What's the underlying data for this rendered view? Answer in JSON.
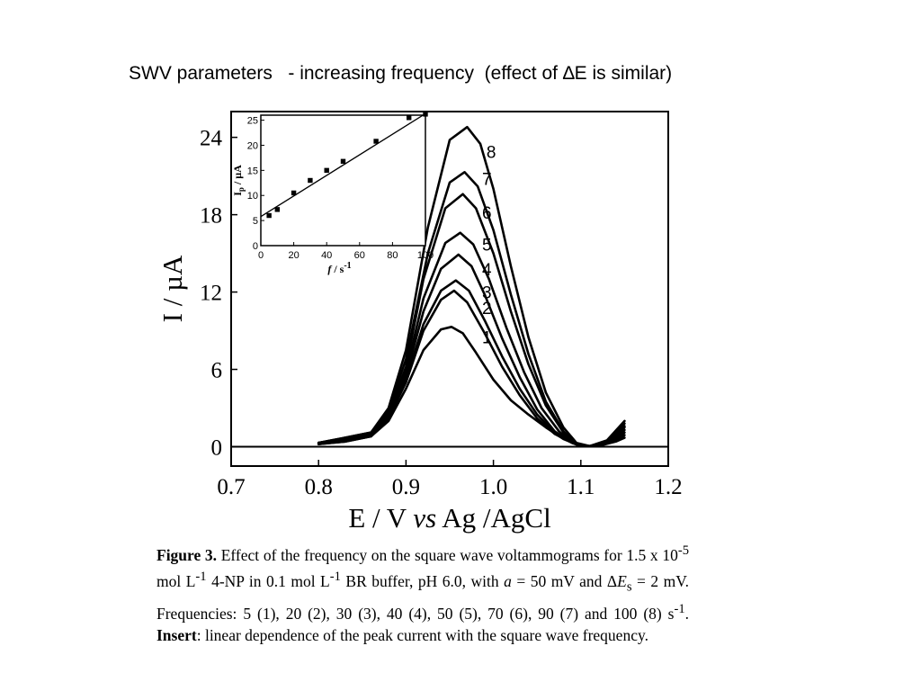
{
  "slide": {
    "title": "SWV parameters   - increasing frequency  (effect of ∆E is similar)"
  },
  "chart_data": [
    {
      "type": "line",
      "xlabel": "E / V vs Ag /AgCl",
      "xlabel_parts": [
        "E / V ",
        "vs",
        " Ag /AgCl"
      ],
      "ylabel": "I / µA",
      "xlim": [
        0.7,
        1.2
      ],
      "ylim": [
        -1.5,
        26
      ],
      "xticks": [
        0.7,
        0.8,
        0.9,
        1.0,
        1.1,
        1.2
      ],
      "xtick_labels": [
        "0.7",
        "0.8",
        "0.9",
        "1.0",
        "1.1",
        "1.2"
      ],
      "yticks": [
        0,
        6,
        12,
        18,
        24
      ],
      "ytick_labels": [
        "0",
        "6",
        "12",
        "18",
        "24"
      ],
      "baseline": 0,
      "series": [
        {
          "name": "1",
          "points": [
            [
              0.8,
              0.2
            ],
            [
              0.83,
              0.4
            ],
            [
              0.86,
              0.8
            ],
            [
              0.88,
              2
            ],
            [
              0.9,
              4.5
            ],
            [
              0.92,
              7.5
            ],
            [
              0.94,
              9.1
            ],
            [
              0.952,
              9.3
            ],
            [
              0.965,
              8.8
            ],
            [
              0.98,
              7.3
            ],
            [
              1.0,
              5.2
            ],
            [
              1.02,
              3.6
            ],
            [
              1.04,
              2.5
            ],
            [
              1.06,
              1.5
            ],
            [
              1.08,
              0.6
            ],
            [
              1.1,
              0.05
            ],
            [
              1.12,
              0.05
            ],
            [
              1.14,
              0.4
            ],
            [
              1.15,
              0.7
            ]
          ]
        },
        {
          "name": "2",
          "points": [
            [
              0.8,
              0.2
            ],
            [
              0.83,
              0.4
            ],
            [
              0.86,
              0.8
            ],
            [
              0.88,
              2.2
            ],
            [
              0.9,
              5
            ],
            [
              0.92,
              9
            ],
            [
              0.94,
              11.4
            ],
            [
              0.955,
              12.1
            ],
            [
              0.97,
              11.2
            ],
            [
              0.99,
              8.8
            ],
            [
              1.01,
              6.2
            ],
            [
              1.03,
              4
            ],
            [
              1.05,
              2.2
            ],
            [
              1.07,
              1
            ],
            [
              1.09,
              0.3
            ],
            [
              1.1,
              0.05
            ],
            [
              1.12,
              0.05
            ],
            [
              1.14,
              0.5
            ],
            [
              1.15,
              0.9
            ]
          ]
        },
        {
          "name": "3",
          "points": [
            [
              0.8,
              0.2
            ],
            [
              0.83,
              0.5
            ],
            [
              0.86,
              0.8
            ],
            [
              0.88,
              2.3
            ],
            [
              0.9,
              5.2
            ],
            [
              0.92,
              9.5
            ],
            [
              0.94,
              12.1
            ],
            [
              0.957,
              12.9
            ],
            [
              0.972,
              12.1
            ],
            [
              0.99,
              9.8
            ],
            [
              1.01,
              7
            ],
            [
              1.03,
              4.5
            ],
            [
              1.05,
              2.5
            ],
            [
              1.07,
              1.1
            ],
            [
              1.09,
              0.3
            ],
            [
              1.1,
              0.05
            ],
            [
              1.12,
              0.05
            ],
            [
              1.14,
              0.6
            ],
            [
              1.15,
              1.1
            ]
          ]
        },
        {
          "name": "4",
          "points": [
            [
              0.8,
              0.3
            ],
            [
              0.83,
              0.5
            ],
            [
              0.86,
              0.9
            ],
            [
              0.88,
              2.4
            ],
            [
              0.9,
              5.5
            ],
            [
              0.92,
              10.5
            ],
            [
              0.94,
              13.8
            ],
            [
              0.96,
              14.9
            ],
            [
              0.975,
              14
            ],
            [
              0.99,
              11.8
            ],
            [
              1.01,
              8.4
            ],
            [
              1.03,
              5.4
            ],
            [
              1.05,
              2.9
            ],
            [
              1.07,
              1.2
            ],
            [
              1.09,
              0.3
            ],
            [
              1.1,
              0.05
            ],
            [
              1.12,
              0.05
            ],
            [
              1.14,
              0.7
            ],
            [
              1.15,
              1.3
            ]
          ]
        },
        {
          "name": "5",
          "points": [
            [
              0.8,
              0.3
            ],
            [
              0.83,
              0.6
            ],
            [
              0.86,
              1
            ],
            [
              0.88,
              2.5
            ],
            [
              0.9,
              5.8
            ],
            [
              0.92,
              11.5
            ],
            [
              0.945,
              15.8
            ],
            [
              0.962,
              16.6
            ],
            [
              0.977,
              15.7
            ],
            [
              0.995,
              13
            ],
            [
              1.015,
              9.2
            ],
            [
              1.035,
              5.8
            ],
            [
              1.055,
              3
            ],
            [
              1.075,
              1.2
            ],
            [
              1.09,
              0.3
            ],
            [
              1.105,
              0.05
            ],
            [
              1.12,
              0.05
            ],
            [
              1.14,
              0.8
            ],
            [
              1.15,
              1.5
            ]
          ]
        },
        {
          "name": "6",
          "points": [
            [
              0.8,
              0.3
            ],
            [
              0.83,
              0.6
            ],
            [
              0.86,
              1
            ],
            [
              0.88,
              2.6
            ],
            [
              0.9,
              6.2
            ],
            [
              0.92,
              13
            ],
            [
              0.945,
              18.5
            ],
            [
              0.965,
              19.6
            ],
            [
              0.98,
              18.5
            ],
            [
              1.0,
              15
            ],
            [
              1.02,
              10.5
            ],
            [
              1.04,
              6.4
            ],
            [
              1.06,
              3.2
            ],
            [
              1.08,
              1.1
            ],
            [
              1.095,
              0.2
            ],
            [
              1.11,
              0.05
            ],
            [
              1.13,
              0.3
            ],
            [
              1.15,
              1.6
            ]
          ]
        },
        {
          "name": "7",
          "points": [
            [
              0.8,
              0.3
            ],
            [
              0.83,
              0.7
            ],
            [
              0.86,
              1.1
            ],
            [
              0.88,
              2.8
            ],
            [
              0.9,
              6.8
            ],
            [
              0.925,
              15
            ],
            [
              0.95,
              20.5
            ],
            [
              0.967,
              21.3
            ],
            [
              0.982,
              20.2
            ],
            [
              1.0,
              16.8
            ],
            [
              1.02,
              11.8
            ],
            [
              1.04,
              7.2
            ],
            [
              1.06,
              3.5
            ],
            [
              1.08,
              1.2
            ],
            [
              1.095,
              0.2
            ],
            [
              1.11,
              0.05
            ],
            [
              1.13,
              0.4
            ],
            [
              1.15,
              1.8
            ]
          ]
        },
        {
          "name": "8",
          "points": [
            [
              0.8,
              0.3
            ],
            [
              0.83,
              0.7
            ],
            [
              0.86,
              1.1
            ],
            [
              0.88,
              3
            ],
            [
              0.9,
              7.5
            ],
            [
              0.925,
              17
            ],
            [
              0.95,
              23.8
            ],
            [
              0.97,
              24.8
            ],
            [
              0.985,
              23.5
            ],
            [
              1.0,
              20
            ],
            [
              1.02,
              14
            ],
            [
              1.04,
              8.5
            ],
            [
              1.06,
              4.2
            ],
            [
              1.08,
              1.5
            ],
            [
              1.095,
              0.3
            ],
            [
              1.11,
              0.05
            ],
            [
              1.13,
              0.5
            ],
            [
              1.15,
              2
            ]
          ]
        }
      ],
      "curve_labels": [
        {
          "text": "1",
          "x": 0.985,
          "y": 8.5
        },
        {
          "text": "2",
          "x": 0.985,
          "y": 10.8
        },
        {
          "text": "3",
          "x": 0.985,
          "y": 12
        },
        {
          "text": "4",
          "x": 0.985,
          "y": 13.8
        },
        {
          "text": "5",
          "x": 0.985,
          "y": 15.7
        },
        {
          "text": "6",
          "x": 0.985,
          "y": 18.2
        },
        {
          "text": "7",
          "x": 0.985,
          "y": 20.8
        },
        {
          "text": "8",
          "x": 0.99,
          "y": 22.9
        }
      ]
    },
    {
      "type": "scatter",
      "role": "inset",
      "xlabel": "f / s⁻¹",
      "xlabel_parts": [
        "f",
        " / s",
        "-1"
      ],
      "ylabel": "Ip / µA",
      "ylabel_parts": [
        "I",
        "p",
        " / µA"
      ],
      "xlim": [
        0,
        100
      ],
      "ylim": [
        0,
        26
      ],
      "xticks": [
        0,
        20,
        40,
        60,
        80,
        100
      ],
      "xtick_labels": [
        "0",
        "20",
        "40",
        "60",
        "80",
        "100"
      ],
      "yticks": [
        0,
        5,
        10,
        15,
        20,
        25
      ],
      "ytick_labels": [
        "0",
        "5",
        "10",
        "15",
        "20",
        "25"
      ],
      "points": [
        [
          5,
          6
        ],
        [
          10,
          7.2
        ],
        [
          20,
          10.5
        ],
        [
          30,
          13
        ],
        [
          40,
          15
        ],
        [
          50,
          16.8
        ],
        [
          70,
          20.8
        ],
        [
          90,
          25.5
        ],
        [
          100,
          26.2
        ]
      ],
      "fit_line": [
        [
          0,
          5.8
        ],
        [
          100,
          26.3
        ]
      ]
    }
  ],
  "caption": {
    "fig_label": "Figure 3.",
    "t1": " Effect of the frequency on the square wave voltammograms for 1.5 x 10",
    "sup1": "-5",
    "t2": " mol L",
    "sup2": "-1",
    "t3": " 4-NP in 0.1 mol L",
    "sup3": "-1",
    "t4": " BR buffer, pH 6.0, with ",
    "ital_a": "a",
    "t5": " = 50 mV and Δ",
    "ital_e": "E",
    "sub_s": "s",
    "t6": " = 2 mV. Frequencies: 5 (1), 20 (2), 30 (3), 40 (4), 50 (5), 70 (6), 90 (7) and 100 (8) s",
    "sup4": "-1",
    "t7": ". ",
    "insert_label": "Insert",
    "t8": ": linear dependence of the peak current with the square wave frequency."
  }
}
